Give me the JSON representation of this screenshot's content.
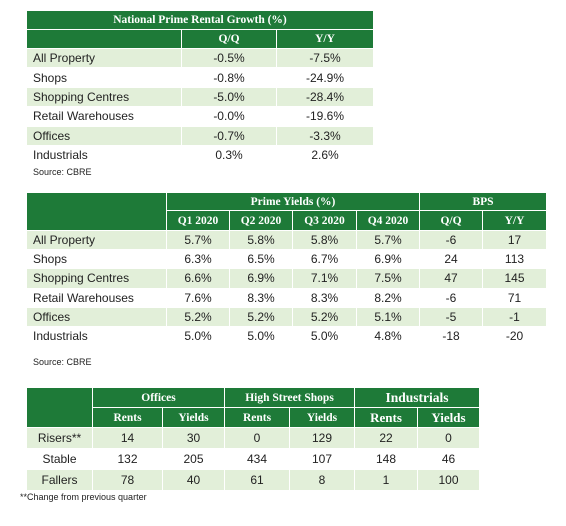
{
  "table1": {
    "title": "National Prime Rental Growth (%)",
    "columns": [
      "Q/Q",
      "Y/Y"
    ],
    "rows": [
      [
        "All Property",
        "-0.5%",
        "-7.5%"
      ],
      [
        "Shops",
        "-0.8%",
        "-24.9%"
      ],
      [
        "Shopping Centres",
        "-5.0%",
        "-28.4%"
      ],
      [
        "Retail Warehouses",
        "-0.0%",
        "-19.6%"
      ],
      [
        "Offices",
        "-0.7%",
        "-3.3%"
      ],
      [
        "Industrials",
        "0.3%",
        "2.6%"
      ]
    ],
    "source": "Source: CBRE"
  },
  "table2": {
    "group_headers": [
      "Prime Yields (%)",
      "BPS"
    ],
    "columns": [
      "Q1 2020",
      "Q2 2020",
      "Q3 2020",
      "Q4 2020",
      "Q/Q",
      "Y/Y"
    ],
    "rows": [
      [
        "All Property",
        "5.7%",
        "5.8%",
        "5.8%",
        "5.7%",
        "-6",
        "17"
      ],
      [
        "Shops",
        "6.3%",
        "6.5%",
        "6.7%",
        "6.9%",
        "24",
        "113"
      ],
      [
        "Shopping Centres",
        "6.6%",
        "6.9%",
        "7.1%",
        "7.5%",
        "47",
        "145"
      ],
      [
        "Retail Warehouses",
        "7.6%",
        "8.3%",
        "8.3%",
        "8.2%",
        "-6",
        "71"
      ],
      [
        "Offices",
        "5.2%",
        "5.2%",
        "5.2%",
        "5.1%",
        "-5",
        "-1"
      ],
      [
        "Industrials",
        "5.0%",
        "5.0%",
        "5.0%",
        "4.8%",
        "-18",
        "-20"
      ]
    ],
    "source": "Source: CBRE"
  },
  "table3": {
    "groups": [
      "Offices",
      "High Street Shops",
      "Industrials"
    ],
    "columns": [
      "Rents",
      "Yields",
      "Rents",
      "Yields",
      "Rents",
      "Yields"
    ],
    "rows": [
      [
        "Risers**",
        "14",
        "30",
        "0",
        "129",
        "22",
        "0"
      ],
      [
        "Stable",
        "132",
        "205",
        "434",
        "107",
        "148",
        "46"
      ],
      [
        "Fallers",
        "78",
        "40",
        "61",
        "8",
        "1",
        "100"
      ]
    ],
    "footnote": "**Change from previous quarter"
  }
}
